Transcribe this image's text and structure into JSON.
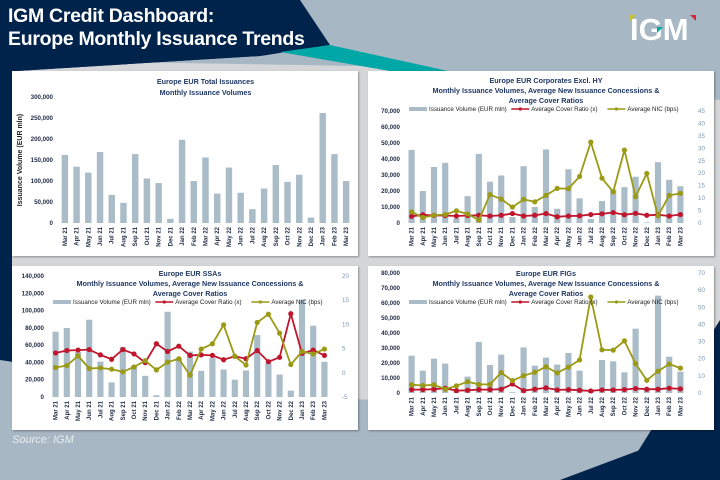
{
  "header": {
    "title_line1": "IGM Credit Dashboard:",
    "title_line2": "Europe Monthly Issuance Trends",
    "logo_text": "IGM"
  },
  "footer": {
    "source": "Source: IGM"
  },
  "colors": {
    "navy": "#00234b",
    "teal": "#00a7a7",
    "bar": "#a9bcc8",
    "cover": "#c0152d",
    "nic": "#9a9a14",
    "slate": "#a7b8c4"
  },
  "chart_data": [
    {
      "id": "total",
      "type": "bar",
      "title": "Europe EUR Total Issuances",
      "subtitle": "Monthly Issuance Volumes",
      "ylabel": "Issuance Volume (EUR mln)",
      "ylim": [
        0,
        300000
      ],
      "yticks": [
        0,
        50000,
        100000,
        150000,
        200000,
        250000,
        300000
      ],
      "ytick_labels": [
        "0",
        "50,000",
        "100,000",
        "150,000",
        "200,000",
        "250,000",
        "300,000"
      ],
      "categories": [
        "Mar 21",
        "Apr 21",
        "May 21",
        "Jun 21",
        "Jul 21",
        "Aug 21",
        "Sep 21",
        "Oct 21",
        "Nov 21",
        "Dec 21",
        "Jan 22",
        "Feb 22",
        "Mar 22",
        "Apr 22",
        "May 22",
        "Jun 22",
        "Jul 22",
        "Aug 22",
        "Sep 22",
        "Oct 22",
        "Nov 22",
        "Dec 22",
        "Jan 23",
        "Feb 23",
        "Mar 23"
      ],
      "series": [
        {
          "name": "Issuance Volume (EUR mln)",
          "values": [
            162000,
            134000,
            120000,
            169000,
            67000,
            48000,
            164000,
            106000,
            95000,
            10000,
            198000,
            100000,
            156000,
            70000,
            132000,
            72000,
            33000,
            82000,
            138000,
            98000,
            115000,
            13000,
            262000,
            164000,
            100000
          ]
        }
      ],
      "grid": false
    },
    {
      "id": "corporates",
      "type": "bar+line",
      "title": "Europe EUR Corporates Excl. HY",
      "subtitle_line1": "Monthly Issuance Volumes, Average New Issuance Concessions &",
      "subtitle_line2": "Average Cover Ratios",
      "ylim": [
        0,
        70000
      ],
      "yticks": [
        0,
        10000,
        20000,
        30000,
        40000,
        50000,
        60000,
        70000
      ],
      "ytick_labels": [
        "0",
        "10,000",
        "20,000",
        "30,000",
        "40,000",
        "50,000",
        "60,000",
        "70,000"
      ],
      "y2lim": [
        0,
        45
      ],
      "y2ticks": [
        0,
        5,
        10,
        15,
        20,
        25,
        30,
        35,
        40,
        45
      ],
      "y2tick_labels": [
        "0",
        "5",
        "10",
        "15",
        "20",
        "25",
        "30",
        "35",
        "40",
        "45"
      ],
      "legend": [
        "Issuance Volume (EUR mln)",
        "Average Cover Ratio (x)",
        "Average NIC (bps)"
      ],
      "legend_position": "top",
      "categories": [
        "Mar 21",
        "Apr 21",
        "May 21",
        "Jun 21",
        "Jul 21",
        "Aug 21",
        "Sep 21",
        "Oct 21",
        "Nov 21",
        "Dec 21",
        "Jan 22",
        "Feb 22",
        "Mar 22",
        "Apr 22",
        "May 22",
        "Jun 22",
        "Jul 22",
        "Aug 22",
        "Sep 22",
        "Oct 22",
        "Nov 22",
        "Dec 22",
        "Jan 23",
        "Feb 23",
        "Mar 23"
      ],
      "series": [
        {
          "name": "Issuance Volume (EUR mln)",
          "axis": "left",
          "kind": "bar",
          "values": [
            45700,
            20000,
            35000,
            37600,
            3000,
            16800,
            43200,
            25800,
            29700,
            3700,
            35500,
            10000,
            46000,
            8900,
            33600,
            15400,
            2500,
            13700,
            21000,
            22400,
            28900,
            400,
            38000,
            27000,
            23000
          ]
        },
        {
          "name": "Average Cover Ratio (x)",
          "axis": "right",
          "kind": "line",
          "values": [
            2.7,
            3.3,
            3.0,
            3.0,
            2.8,
            3.0,
            3.1,
            2.8,
            3.1,
            3.8,
            2.8,
            3.1,
            3.8,
            2.5,
            2.8,
            2.9,
            3.4,
            3.7,
            4.2,
            3.3,
            3.9,
            3.1,
            3.3,
            2.8,
            3.4
          ]
        },
        {
          "name": "Average NIC (bps)",
          "axis": "right",
          "kind": "line",
          "values": [
            4.5,
            2.2,
            3.1,
            3.4,
            4.9,
            3.6,
            1.2,
            11.4,
            9.6,
            6.4,
            9.5,
            8.5,
            11.1,
            13.9,
            13.8,
            18.7,
            32.5,
            18.0,
            12.5,
            29.3,
            10.6,
            19.9,
            2.9,
            11.1,
            11.9
          ]
        }
      ]
    },
    {
      "id": "ssas",
      "type": "bar+line",
      "title": "Europe EUR SSAs",
      "subtitle_line1": "Monthly Issuance Volumes, Average New Issuance Concessions &",
      "subtitle_line2": "Average Cover Ratios",
      "ylim": [
        0,
        140000
      ],
      "yticks": [
        0,
        20000,
        40000,
        60000,
        80000,
        100000,
        120000,
        140000
      ],
      "ytick_labels": [
        "0",
        "20,000",
        "40,000",
        "60,000",
        "80,000",
        "100,000",
        "120,000",
        "140,000"
      ],
      "y2lim": [
        -5,
        20
      ],
      "y2ticks": [
        -5,
        0,
        5,
        10,
        15,
        20
      ],
      "y2tick_labels": [
        "-5",
        "0",
        "5",
        "10",
        "15",
        "20"
      ],
      "legend": [
        "Issuance Volume (EUR mln)",
        "Average Cover Ratio (x)",
        "Average NIC (bps)"
      ],
      "legend_position": "top",
      "categories": [
        "Mar 21",
        "Apr 21",
        "May 21",
        "Jun 21",
        "Jul 21",
        "Aug 21",
        "Sep 21",
        "Oct 21",
        "Nov 21",
        "Dec 21",
        "Jan 22",
        "Feb 22",
        "Mar 22",
        "Apr 22",
        "May 22",
        "Jun 22",
        "Jul 22",
        "Aug 22",
        "Sep 22",
        "Oct 22",
        "Nov 22",
        "Dec 22",
        "Jan 23",
        "Feb 23",
        "Mar 23"
      ],
      "series": [
        {
          "name": "Issuance Volume (EUR mln)",
          "axis": "left",
          "kind": "bar",
          "values": [
            75600,
            79800,
            52000,
            89400,
            41000,
            16900,
            58000,
            36000,
            24500,
            2000,
            98600,
            45000,
            52500,
            30300,
            45000,
            31800,
            20000,
            30700,
            71700,
            40000,
            26000,
            7300,
            112400,
            82500,
            40700
          ]
        },
        {
          "name": "Average Cover Ratio (x)",
          "axis": "right",
          "kind": "line",
          "values": [
            4.1,
            4.6,
            4.7,
            4.8,
            3.7,
            2.8,
            4.8,
            3.9,
            2.1,
            6.0,
            4.4,
            5.5,
            3.6,
            3.7,
            3.6,
            2.7,
            3.4,
            2.9,
            4.6,
            2.3,
            3.2,
            12.2,
            4.0,
            4.7,
            3.6
          ]
        },
        {
          "name": "Average NIC (bps)",
          "axis": "right",
          "kind": "line",
          "values": [
            1.1,
            1.5,
            3.5,
            0.9,
            1.0,
            0.75,
            0.2,
            1.2,
            2.5,
            0.6,
            2.2,
            2.9,
            -0.5,
            4.9,
            6.0,
            9.9,
            3.4,
            1.6,
            10.4,
            12.1,
            8.2,
            1.7,
            4.4,
            3.9,
            4.9
          ]
        }
      ]
    },
    {
      "id": "figs",
      "type": "bar+line",
      "title": "Europe EUR FIGs",
      "subtitle_line1": "Monthly Issuance Volumes, Average New Issuance Concessions &",
      "subtitle_line2": "Average Cover Ratios",
      "ylim": [
        0,
        80000
      ],
      "yticks": [
        0,
        10000,
        20000,
        30000,
        40000,
        50000,
        60000,
        70000,
        80000
      ],
      "ytick_labels": [
        "0",
        "10,000",
        "20,000",
        "30,000",
        "40,000",
        "50,000",
        "60,000",
        "70,000",
        "80,000"
      ],
      "y2lim": [
        0,
        70
      ],
      "y2ticks": [
        0,
        10,
        20,
        30,
        40,
        50,
        60,
        70
      ],
      "y2tick_labels": [
        "0",
        "10",
        "20",
        "30",
        "40",
        "50",
        "60",
        "70"
      ],
      "legend": [
        "Issuance Volume (EUR mln)",
        "Average Cover Ratio (x)",
        "Average NIC (bps)"
      ],
      "legend_position": "top",
      "categories": [
        "Mar 21",
        "Apr 21",
        "May 21",
        "Jun 21",
        "Jul 21",
        "Aug 21",
        "Sep 21",
        "Oct 21",
        "Nov 21",
        "Dec 21",
        "Jan 22",
        "Feb 22",
        "Mar 22",
        "Apr 22",
        "May 22",
        "Jun 22",
        "Jul 22",
        "Aug 22",
        "Sep 22",
        "Oct 22",
        "Nov 22",
        "Dec 22",
        "Jan 23",
        "Feb 23",
        "Mar 23"
      ],
      "series": [
        {
          "name": "Issuance Volume (EUR mln)",
          "axis": "left",
          "kind": "bar",
          "values": [
            24900,
            14900,
            22900,
            19600,
            1000,
            10900,
            34000,
            18700,
            25600,
            500,
            30400,
            18200,
            23600,
            18900,
            26700,
            14900,
            1500,
            22000,
            21100,
            13800,
            42900,
            2000,
            64900,
            24200,
            14200
          ]
        },
        {
          "name": "Average Cover Ratio (x)",
          "axis": "right",
          "kind": "line",
          "values": [
            2.0,
            2.0,
            2.2,
            2.8,
            1.4,
            1.6,
            2.0,
            2.0,
            2.2,
            5.2,
            1.4,
            2.2,
            3.0,
            1.8,
            2.0,
            1.6,
            1.2,
            1.8,
            1.8,
            2.0,
            2.6,
            2.2,
            2.2,
            2.8,
            2.4
          ]
        },
        {
          "name": "Average NIC (bps)",
          "axis": "right",
          "kind": "line",
          "values": [
            4.8,
            4.4,
            4.8,
            2.2,
            4.2,
            6.6,
            5.0,
            5.0,
            11.9,
            7.2,
            10.1,
            12.1,
            15.3,
            11.7,
            15.1,
            19.3,
            56.0,
            25.2,
            25.0,
            30.4,
            17.1,
            7.4,
            12.7,
            16.9,
            14.5
          ]
        }
      ]
    }
  ]
}
